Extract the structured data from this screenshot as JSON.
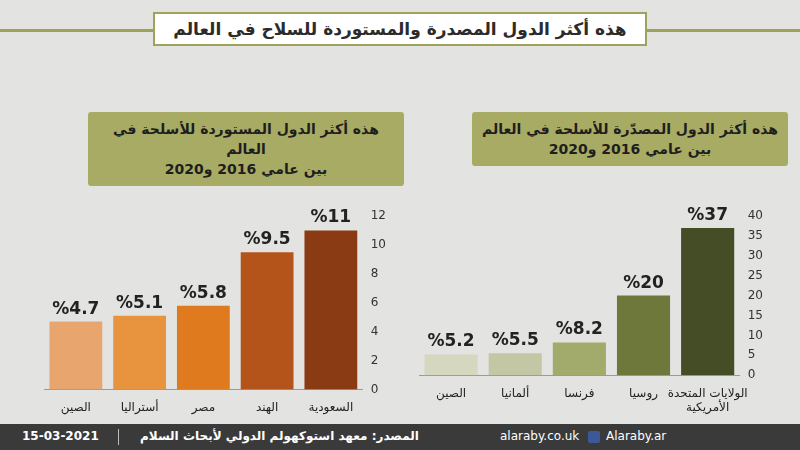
{
  "title": "هذه أكثر الدول المصدرة والمستوردة للسلاح في العالم",
  "chart_data": [
    {
      "type": "bar",
      "title": "هذه أكثر الدول المستوردة للأسلحة في العالم",
      "subtitle": "بين عامي 2016 و2020",
      "categories": [
        "الصين",
        "أستراليا",
        "مصر",
        "الهند",
        "السعودية"
      ],
      "values": [
        4.7,
        5.1,
        5.8,
        9.5,
        11
      ],
      "value_labels": [
        "%4.7",
        "%5.1",
        "%5.8",
        "%9.5",
        "%11"
      ],
      "colors": [
        "#e9a56e",
        "#e8943f",
        "#df7a1f",
        "#b4541b",
        "#8b3b13"
      ],
      "ylim": [
        0,
        12
      ],
      "yticks": [
        0,
        2,
        4,
        6,
        8,
        10,
        12
      ],
      "grid": false,
      "data_labels": true
    },
    {
      "type": "bar",
      "title": "هذه أكثر الدول المصدّرة للأسلحة في العالم",
      "subtitle": "بين عامي 2016 و2020",
      "categories": [
        "الصين",
        "ألمانيا",
        "فرنسا",
        "روسيا",
        "الولايات المتحدة الأمريكية"
      ],
      "values": [
        5.2,
        5.5,
        8.2,
        20,
        37
      ],
      "value_labels": [
        "%5.2",
        "%5.5",
        "%8.2",
        "%20",
        "%37"
      ],
      "colors": [
        "#d5d7bf",
        "#c3c7a4",
        "#a3ab6c",
        "#6e783a",
        "#454d26"
      ],
      "ylim": [
        0,
        40
      ],
      "yticks": [
        0,
        5,
        10,
        15,
        20,
        25,
        30,
        35,
        40
      ],
      "grid": false,
      "data_labels": true
    }
  ],
  "footer": {
    "date": "15-03-2021",
    "source": "المصدر: معهد استوكهولم الدولي لأبحاث السلام",
    "website": "alaraby.co.uk",
    "social": "Alaraby.ar"
  }
}
